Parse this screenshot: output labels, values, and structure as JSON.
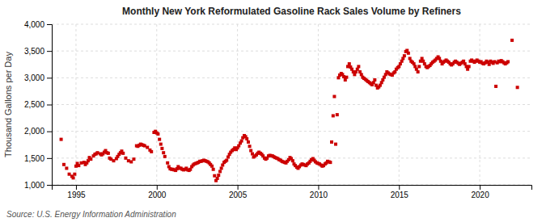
{
  "chart_data": {
    "type": "scatter",
    "title": "Monthly New York Reformulated Gasoline Rack Sales Volume by Refiners",
    "ylabel": "Thousand Gallons per Day",
    "source": "Source: U.S. Energy Information Administration",
    "color": "#cc0000",
    "marker": "square",
    "grid": true,
    "xlim": [
      1993.5,
      2023.2
    ],
    "ylim": [
      1000,
      4000
    ],
    "xticks": [
      1995,
      2000,
      2005,
      2010,
      2015,
      2020
    ],
    "yticks": [
      {
        "value": 1000,
        "label": "1,000"
      },
      {
        "value": 1500,
        "label": "1,500"
      },
      {
        "value": 2000,
        "label": "2,000"
      },
      {
        "value": 2500,
        "label": "2,500"
      },
      {
        "value": 3000,
        "label": "3,000"
      },
      {
        "value": 3500,
        "label": "3,500"
      },
      {
        "value": 4000,
        "label": "4,000"
      }
    ],
    "x": [
      1994.08,
      1994.25,
      1994.42,
      1994.58,
      1994.75,
      1994.83,
      1994.92,
      1995.0,
      1995.08,
      1995.17,
      1995.33,
      1995.5,
      1995.58,
      1995.67,
      1995.75,
      1995.83,
      1995.92,
      1996.08,
      1996.17,
      1996.25,
      1996.33,
      1996.5,
      1996.58,
      1996.67,
      1996.75,
      1996.83,
      1996.92,
      1997.0,
      1997.08,
      1997.17,
      1997.33,
      1997.5,
      1997.58,
      1997.67,
      1997.75,
      1997.83,
      1997.92,
      1998.08,
      1998.25,
      1998.42,
      1998.58,
      1998.75,
      1998.83,
      1998.92,
      1999.0,
      1999.08,
      1999.17,
      1999.25,
      1999.42,
      1999.58,
      1999.67,
      1999.83,
      1999.92,
      2000.0,
      2000.08,
      2000.17,
      2000.25,
      2000.33,
      2000.42,
      2000.5,
      2000.67,
      2000.75,
      2000.83,
      2000.92,
      2001.0,
      2001.08,
      2001.17,
      2001.25,
      2001.33,
      2001.42,
      2001.5,
      2001.58,
      2001.67,
      2001.75,
      2001.83,
      2001.92,
      2002.0,
      2002.08,
      2002.17,
      2002.25,
      2002.33,
      2002.42,
      2002.5,
      2002.58,
      2002.67,
      2002.75,
      2002.83,
      2002.92,
      2003.0,
      2003.08,
      2003.17,
      2003.25,
      2003.33,
      2003.42,
      2003.5,
      2003.58,
      2003.67,
      2003.75,
      2003.83,
      2003.92,
      2004.0,
      2004.08,
      2004.17,
      2004.25,
      2004.33,
      2004.42,
      2004.5,
      2004.58,
      2004.67,
      2004.75,
      2004.83,
      2004.92,
      2005.0,
      2005.08,
      2005.17,
      2005.25,
      2005.33,
      2005.42,
      2005.5,
      2005.58,
      2005.67,
      2005.75,
      2005.83,
      2005.92,
      2006.0,
      2006.08,
      2006.17,
      2006.25,
      2006.33,
      2006.42,
      2006.5,
      2006.58,
      2006.67,
      2006.75,
      2006.83,
      2006.92,
      2007.0,
      2007.08,
      2007.17,
      2007.25,
      2007.33,
      2007.42,
      2007.5,
      2007.58,
      2007.67,
      2007.75,
      2007.83,
      2007.92,
      2008.0,
      2008.08,
      2008.17,
      2008.25,
      2008.33,
      2008.42,
      2008.5,
      2008.58,
      2008.67,
      2008.75,
      2008.83,
      2008.92,
      2009.0,
      2009.08,
      2009.17,
      2009.25,
      2009.33,
      2009.42,
      2009.5,
      2009.58,
      2009.67,
      2009.75,
      2009.83,
      2009.92,
      2010.0,
      2010.08,
      2010.17,
      2010.25,
      2010.33,
      2010.42,
      2010.5,
      2010.58,
      2010.67,
      2010.75,
      2010.83,
      2010.92,
      2011.0,
      2011.08,
      2011.17,
      2011.25,
      2011.33,
      2011.42,
      2011.5,
      2011.58,
      2011.67,
      2011.75,
      2011.83,
      2011.92,
      2012.0,
      2012.08,
      2012.17,
      2012.25,
      2012.33,
      2012.42,
      2012.5,
      2012.58,
      2012.67,
      2012.75,
      2012.83,
      2012.92,
      2013.0,
      2013.08,
      2013.17,
      2013.25,
      2013.33,
      2013.42,
      2013.5,
      2013.58,
      2013.67,
      2013.75,
      2013.83,
      2013.92,
      2014.0,
      2014.08,
      2014.17,
      2014.25,
      2014.33,
      2014.42,
      2014.5,
      2014.58,
      2014.67,
      2014.75,
      2014.83,
      2014.92,
      2015.0,
      2015.08,
      2015.17,
      2015.25,
      2015.33,
      2015.42,
      2015.5,
      2015.58,
      2015.67,
      2015.75,
      2015.83,
      2015.92,
      2016.0,
      2016.08,
      2016.17,
      2016.25,
      2016.33,
      2016.42,
      2016.5,
      2016.58,
      2016.67,
      2016.75,
      2016.83,
      2016.92,
      2017.0,
      2017.08,
      2017.17,
      2017.25,
      2017.33,
      2017.42,
      2017.5,
      2017.58,
      2017.67,
      2017.75,
      2017.83,
      2017.92,
      2018.0,
      2018.08,
      2018.17,
      2018.25,
      2018.33,
      2018.42,
      2018.5,
      2018.58,
      2018.67,
      2018.75,
      2018.83,
      2018.92,
      2019.0,
      2019.08,
      2019.17,
      2019.25,
      2019.33,
      2019.42,
      2019.5,
      2019.58,
      2019.67,
      2019.75,
      2019.83,
      2019.92,
      2020.0,
      2020.08,
      2020.17,
      2020.25,
      2020.33,
      2020.42,
      2020.5,
      2020.58,
      2020.67,
      2020.75,
      2020.83,
      2020.92,
      2021.0,
      2021.08,
      2021.17,
      2021.25,
      2021.33,
      2021.42,
      2021.5,
      2021.58,
      2021.67,
      2021.75,
      2022.0,
      2022.33
    ],
    "values": [
      1850,
      1380,
      1310,
      1200,
      1160,
      1130,
      1200,
      1350,
      1400,
      1360,
      1410,
      1420,
      1380,
      1410,
      1450,
      1510,
      1480,
      1540,
      1570,
      1580,
      1600,
      1580,
      1560,
      1580,
      1610,
      1640,
      1600,
      1590,
      1500,
      1480,
      1450,
      1490,
      1530,
      1570,
      1600,
      1630,
      1590,
      1500,
      1450,
      1430,
      1480,
      1730,
      1720,
      1740,
      1760,
      1750,
      1740,
      1730,
      1700,
      1650,
      1620,
      1980,
      2000,
      1970,
      1950,
      1850,
      1760,
      1680,
      1600,
      1530,
      1410,
      1340,
      1300,
      1290,
      1290,
      1280,
      1270,
      1300,
      1340,
      1310,
      1310,
      1290,
      1280,
      1290,
      1310,
      1280,
      1270,
      1290,
      1340,
      1370,
      1390,
      1400,
      1410,
      1420,
      1440,
      1440,
      1450,
      1460,
      1450,
      1440,
      1430,
      1410,
      1380,
      1350,
      1290,
      1170,
      1080,
      1120,
      1180,
      1250,
      1310,
      1370,
      1420,
      1440,
      1460,
      1520,
      1570,
      1610,
      1640,
      1660,
      1690,
      1660,
      1690,
      1730,
      1780,
      1820,
      1880,
      1920,
      1900,
      1860,
      1800,
      1720,
      1640,
      1580,
      1520,
      1540,
      1560,
      1590,
      1610,
      1590,
      1570,
      1540,
      1500,
      1480,
      1500,
      1540,
      1550,
      1545,
      1540,
      1525,
      1510,
      1500,
      1490,
      1470,
      1460,
      1440,
      1430,
      1420,
      1410,
      1440,
      1470,
      1510,
      1490,
      1450,
      1390,
      1360,
      1330,
      1310,
      1340,
      1370,
      1390,
      1380,
      1370,
      1360,
      1390,
      1410,
      1440,
      1470,
      1490,
      1460,
      1430,
      1410,
      1400,
      1390,
      1370,
      1350,
      1360,
      1390,
      1410,
      1440,
      1430,
      1420,
      1800,
      2290,
      2650,
      1760,
      2310,
      3000,
      3050,
      3080,
      3060,
      3020,
      2960,
      3010,
      3210,
      3260,
      3200,
      3160,
      3110,
      3060,
      3110,
      3160,
      3210,
      3110,
      3060,
      3010,
      2990,
      2970,
      2950,
      2930,
      2910,
      2890,
      2870,
      2910,
      2960,
      2860,
      2810,
      2830,
      2860,
      2910,
      2960,
      3010,
      3060,
      3110,
      3090,
      3070,
      3060,
      3050,
      3090,
      3110,
      3160,
      3190,
      3210,
      3260,
      3310,
      3360,
      3410,
      3490,
      3510,
      3460,
      3360,
      3310,
      3290,
      3260,
      3210,
      3160,
      3110,
      3210,
      3310,
      3360,
      3310,
      3260,
      3210,
      3190,
      3210,
      3230,
      3260,
      3290,
      3310,
      3330,
      3360,
      3390,
      3360,
      3310,
      3260,
      3290,
      3310,
      3330,
      3310,
      3290,
      3260,
      3240,
      3260,
      3290,
      3310,
      3290,
      3270,
      3250,
      3270,
      3290,
      3310,
      3260,
      3210,
      3160,
      3210,
      3310,
      3330,
      3310,
      3290,
      3310,
      3330,
      3310,
      3290,
      3300,
      3270,
      3260,
      3280,
      3310,
      3290,
      3250,
      3310,
      3290,
      3270,
      3300,
      2840,
      3280,
      3310,
      3300,
      3320,
      3300,
      3280,
      3260,
      3280,
      3300,
      3700,
      2820
    ]
  }
}
